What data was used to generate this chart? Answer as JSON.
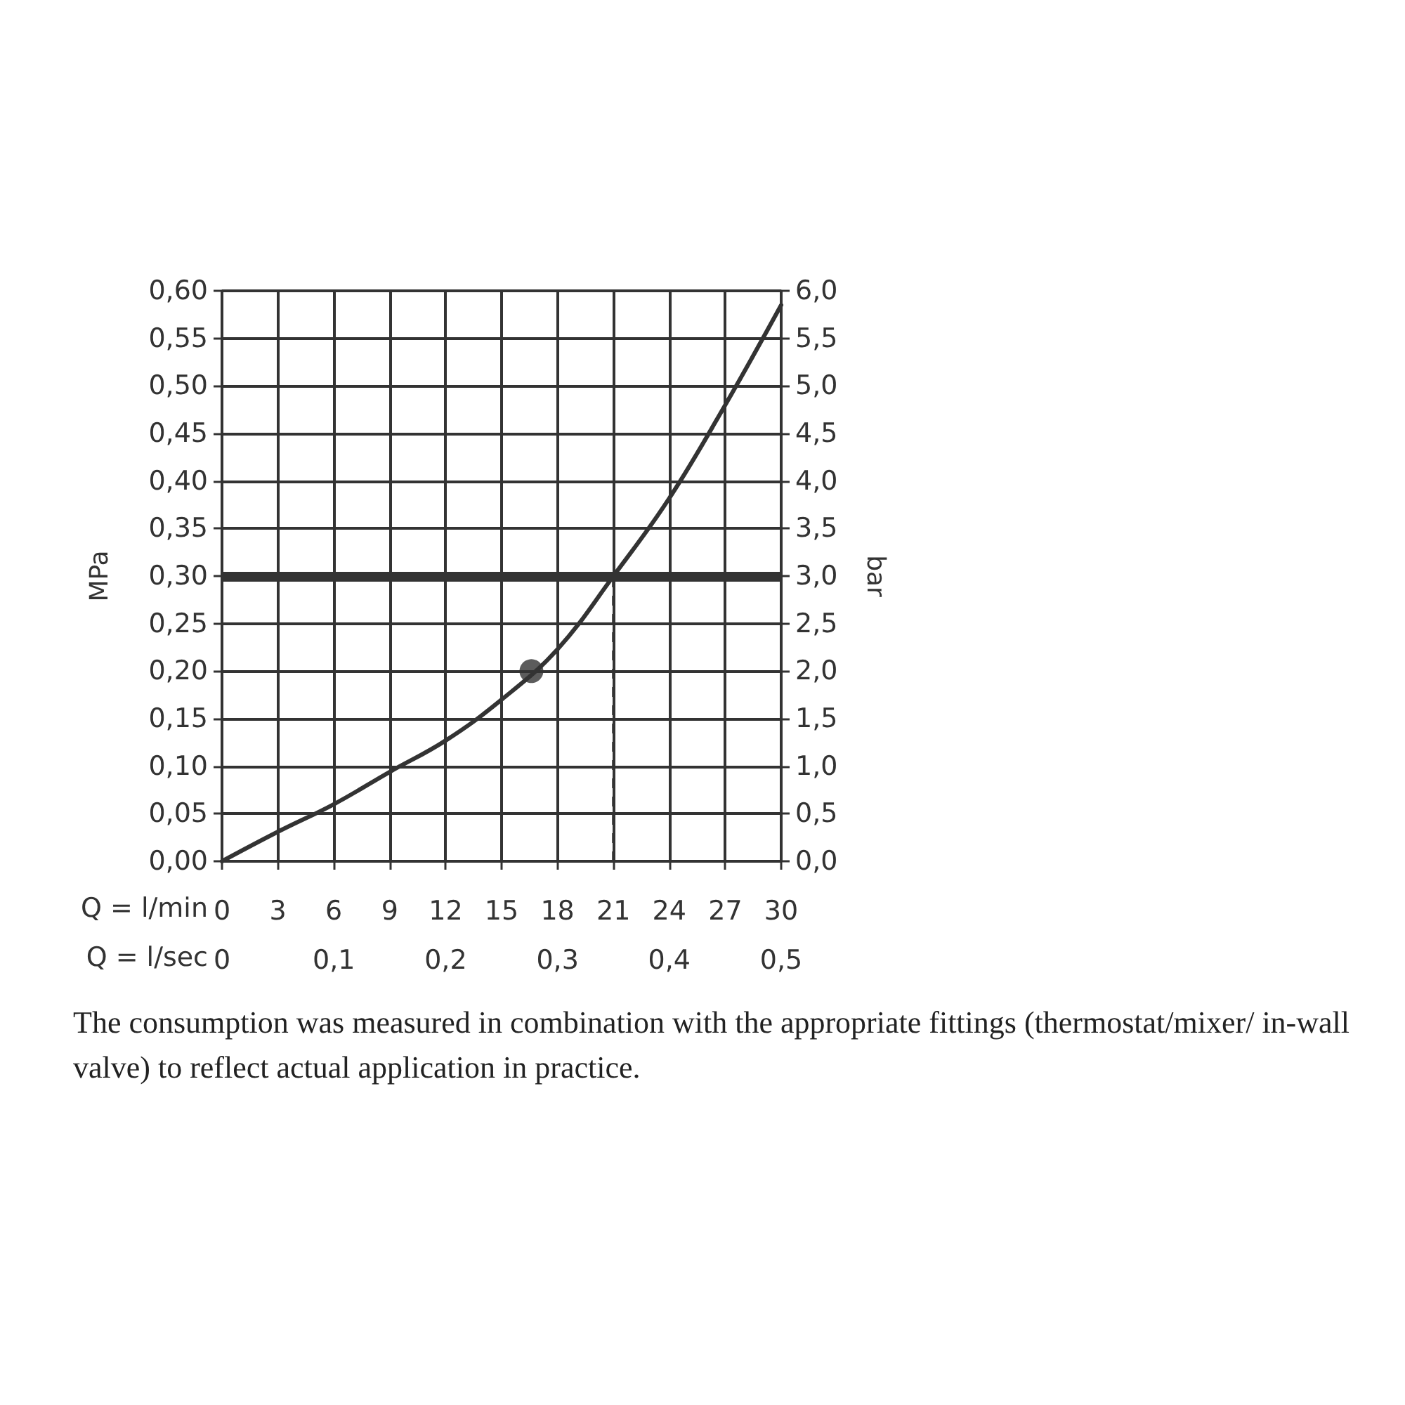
{
  "chart_data": {
    "type": "line",
    "ylabel": "MPa",
    "y2label": "bar",
    "xlabel": "Q = l/min",
    "x2label": "Q = l/sec",
    "xlim": [
      0,
      30
    ],
    "xticks": [
      0,
      3,
      6,
      9,
      12,
      15,
      18,
      21,
      24,
      27,
      30
    ],
    "x2lim": [
      0,
      0.5
    ],
    "x2ticks": [
      0,
      {
        "value": 0.1,
        "label": "0,1"
      },
      {
        "value": 0.2,
        "label": "0,2"
      },
      {
        "value": 0.3,
        "label": "0,3"
      },
      {
        "value": 0.4,
        "label": "0,4"
      },
      {
        "value": 0.5,
        "label": "0,5"
      }
    ],
    "ylim": [
      0,
      0.6
    ],
    "yticks": [
      {
        "value": 0,
        "label": "0,00"
      },
      {
        "value": 0.05,
        "label": "0,05"
      },
      {
        "value": 0.1,
        "label": "0,10"
      },
      {
        "value": 0.15,
        "label": "0,15"
      },
      {
        "value": 0.2,
        "label": "0,20"
      },
      {
        "value": 0.25,
        "label": "0,25"
      },
      {
        "value": 0.3,
        "label": "0,30"
      },
      {
        "value": 0.35,
        "label": "0,35"
      },
      {
        "value": 0.4,
        "label": "0,40"
      },
      {
        "value": 0.45,
        "label": "0,45"
      },
      {
        "value": 0.5,
        "label": "0,50"
      },
      {
        "value": 0.55,
        "label": "0,55"
      },
      {
        "value": 0.6,
        "label": "0,60"
      }
    ],
    "y2lim": [
      0,
      6
    ],
    "y2ticks": [
      {
        "value": 0,
        "label": "0,0"
      },
      {
        "value": 0.5,
        "label": "0,5"
      },
      {
        "value": 1,
        "label": "1,0"
      },
      {
        "value": 1.5,
        "label": "1,5"
      },
      {
        "value": 2,
        "label": "2,0"
      },
      {
        "value": 2.5,
        "label": "2,5"
      },
      {
        "value": 3,
        "label": "3,0"
      },
      {
        "value": 3.5,
        "label": "3,5"
      },
      {
        "value": 4,
        "label": "4,0"
      },
      {
        "value": 4.5,
        "label": "4,5"
      },
      {
        "value": 5,
        "label": "5,0"
      },
      {
        "value": 5.5,
        "label": "5,5"
      },
      {
        "value": 6,
        "label": "6,0"
      }
    ],
    "grid": true,
    "series": [
      {
        "type": "line",
        "color": "#333333",
        "marker": "none",
        "line_style": "solid",
        "x": [
          0,
          3,
          6,
          9,
          12,
          15,
          18,
          21,
          24,
          27,
          30
        ],
        "values": [
          0,
          0.031,
          0.06,
          0.094,
          0.127,
          0.17,
          0.223,
          0.3,
          0.382,
          0.48,
          0.585
        ]
      },
      {
        "type": "scatter",
        "color": "#333333",
        "marker": "circle",
        "x": [
          16.6
        ],
        "values": [
          0.2
        ]
      }
    ],
    "ref_lines": [
      {
        "axis": "y",
        "value": 0.3,
        "color": "#333333",
        "line_style": "solid"
      },
      {
        "axis": "x",
        "value": 21,
        "color": "#333333",
        "line_style": "dashed"
      }
    ],
    "annotations": [
      "The consumption was measured in combination with the appropriate fittings (thermostat/mixer/ in-wall valve) to reflect actual application in practice."
    ]
  }
}
